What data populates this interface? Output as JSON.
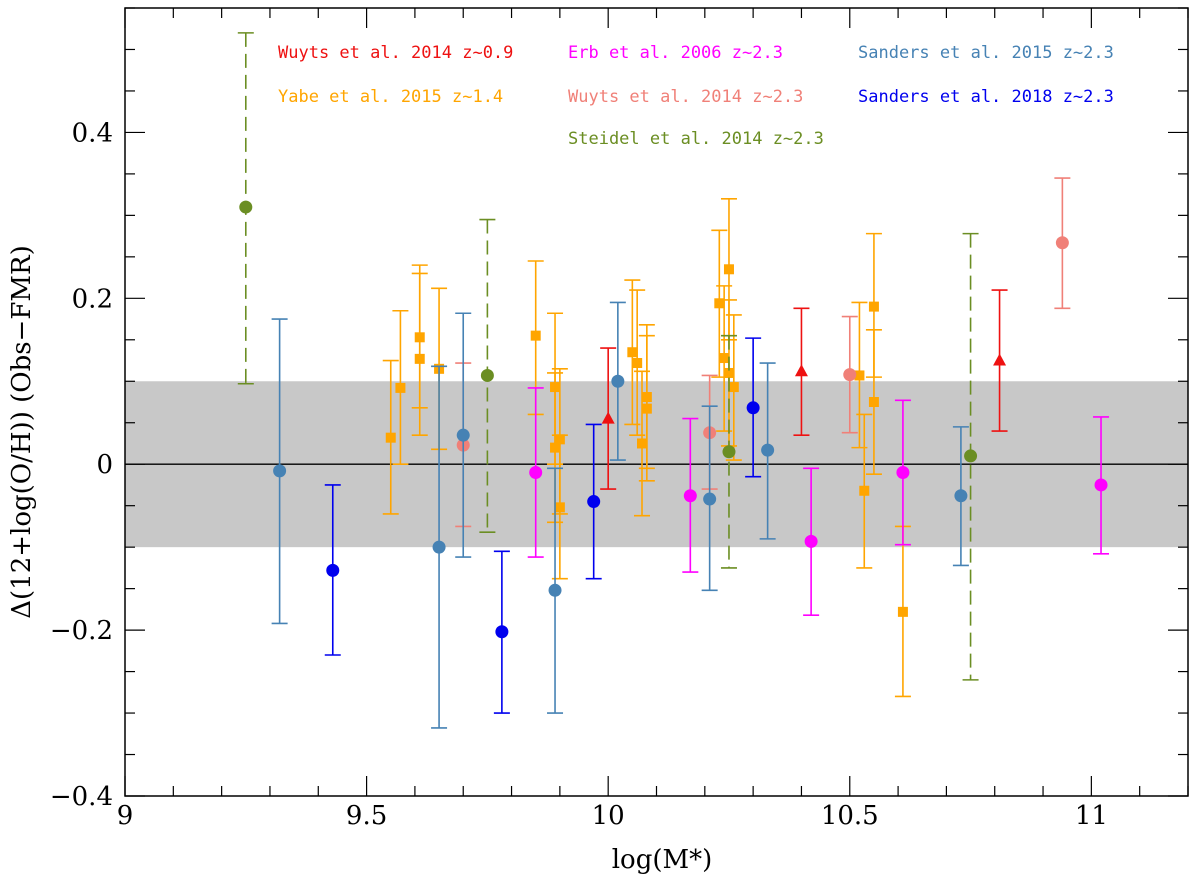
{
  "chart_data": {
    "type": "scatter",
    "xlabel": "log(M*)",
    "ylabel": "Δ(12+log(O/H)) (Obs−FMR)",
    "xlim": [
      9.0,
      11.2
    ],
    "ylim": [
      -0.4,
      0.55
    ],
    "x_ticks": [
      9,
      9.5,
      10,
      10.5,
      11
    ],
    "x_tick_labels": [
      "9",
      "9.5",
      "10",
      "10.5",
      "11"
    ],
    "y_ticks": [
      -0.4,
      -0.2,
      0,
      0.2,
      0.4
    ],
    "y_tick_labels": [
      "−0.4",
      "−0.2",
      "0",
      "0.2",
      "0.4"
    ],
    "shaded_band": [
      -0.1,
      0.1
    ],
    "shaded_color": "#c8c8c8",
    "reference_line_y": 0,
    "legend_placement": "top",
    "series": [
      {
        "name": "Wuyts et al. 2014 z~0.9",
        "color": "#ee1111",
        "marker": "triangle",
        "dashed": false,
        "points": [
          {
            "x": 10.0,
            "y": 0.055,
            "lo": -0.03,
            "hi": 0.14
          },
          {
            "x": 10.4,
            "y": 0.112,
            "lo": 0.035,
            "hi": 0.188
          },
          {
            "x": 10.81,
            "y": 0.125,
            "lo": 0.04,
            "hi": 0.21
          }
        ]
      },
      {
        "name": "Yabe et al. 2015 z~1.4",
        "color": "#ffa500",
        "marker": "square",
        "dashed": false,
        "points": [
          {
            "x": 9.55,
            "y": 0.032,
            "lo": -0.06,
            "hi": 0.125
          },
          {
            "x": 9.57,
            "y": 0.092,
            "lo": 0.0,
            "hi": 0.185
          },
          {
            "x": 9.61,
            "y": 0.153,
            "lo": 0.068,
            "hi": 0.24
          },
          {
            "x": 9.61,
            "y": 0.127,
            "lo": 0.035,
            "hi": 0.23
          },
          {
            "x": 9.65,
            "y": 0.115,
            "lo": 0.018,
            "hi": 0.212
          },
          {
            "x": 9.85,
            "y": 0.155,
            "lo": 0.06,
            "hi": 0.245
          },
          {
            "x": 9.89,
            "y": 0.093,
            "lo": 0.0,
            "hi": 0.182
          },
          {
            "x": 9.89,
            "y": 0.02,
            "lo": -0.07,
            "hi": 0.11
          },
          {
            "x": 9.9,
            "y": 0.03,
            "lo": -0.06,
            "hi": 0.115
          },
          {
            "x": 9.9,
            "y": -0.052,
            "lo": -0.138,
            "hi": 0.035
          },
          {
            "x": 10.05,
            "y": 0.135,
            "lo": 0.048,
            "hi": 0.222
          },
          {
            "x": 10.06,
            "y": 0.122,
            "lo": 0.035,
            "hi": 0.21
          },
          {
            "x": 10.07,
            "y": 0.025,
            "lo": -0.062,
            "hi": 0.112
          },
          {
            "x": 10.08,
            "y": 0.081,
            "lo": -0.005,
            "hi": 0.168
          },
          {
            "x": 10.08,
            "y": 0.067,
            "lo": -0.02,
            "hi": 0.155
          },
          {
            "x": 10.23,
            "y": 0.194,
            "lo": 0.105,
            "hi": 0.282
          },
          {
            "x": 10.24,
            "y": 0.128,
            "lo": 0.04,
            "hi": 0.215
          },
          {
            "x": 10.25,
            "y": 0.235,
            "lo": 0.15,
            "hi": 0.32
          },
          {
            "x": 10.25,
            "y": 0.11,
            "lo": 0.022,
            "hi": 0.198
          },
          {
            "x": 10.26,
            "y": 0.093,
            "lo": 0.005,
            "hi": 0.18
          },
          {
            "x": 10.52,
            "y": 0.107,
            "lo": 0.02,
            "hi": 0.195
          },
          {
            "x": 10.53,
            "y": -0.032,
            "lo": -0.125,
            "hi": 0.06
          },
          {
            "x": 10.55,
            "y": 0.19,
            "lo": 0.105,
            "hi": 0.278
          },
          {
            "x": 10.55,
            "y": 0.075,
            "lo": -0.012,
            "hi": 0.162
          },
          {
            "x": 10.61,
            "y": -0.178,
            "lo": -0.28,
            "hi": -0.075
          }
        ]
      },
      {
        "name": "Erb et al. 2006 z~2.3",
        "color": "#ff00ff",
        "marker": "circle",
        "dashed": false,
        "points": [
          {
            "x": 9.85,
            "y": -0.01,
            "lo": -0.112,
            "hi": 0.092
          },
          {
            "x": 10.17,
            "y": -0.038,
            "lo": -0.13,
            "hi": 0.055
          },
          {
            "x": 10.42,
            "y": -0.093,
            "lo": -0.182,
            "hi": -0.005
          },
          {
            "x": 10.61,
            "y": -0.01,
            "lo": -0.097,
            "hi": 0.077
          },
          {
            "x": 11.02,
            "y": -0.025,
            "lo": -0.108,
            "hi": 0.057
          }
        ]
      },
      {
        "name": "Wuyts et al. 2014 z~2.3",
        "color": "#f08078",
        "marker": "circle",
        "dashed": false,
        "points": [
          {
            "x": 9.7,
            "y": 0.023,
            "lo": -0.075,
            "hi": 0.122
          },
          {
            "x": 10.21,
            "y": 0.038,
            "lo": -0.03,
            "hi": 0.107
          },
          {
            "x": 10.5,
            "y": 0.108,
            "lo": 0.038,
            "hi": 0.178
          },
          {
            "x": 10.94,
            "y": 0.267,
            "lo": 0.188,
            "hi": 0.345
          }
        ]
      },
      {
        "name": "Steidel et al. 2014 z~2.3",
        "color": "#6b8e23",
        "marker": "circle",
        "dashed": true,
        "points": [
          {
            "x": 9.25,
            "y": 0.31,
            "lo": 0.097,
            "hi": 0.52
          },
          {
            "x": 9.75,
            "y": 0.107,
            "lo": -0.082,
            "hi": 0.295
          },
          {
            "x": 10.25,
            "y": 0.015,
            "lo": -0.125,
            "hi": 0.155
          },
          {
            "x": 10.75,
            "y": 0.01,
            "lo": -0.26,
            "hi": 0.278
          }
        ]
      },
      {
        "name": "Sanders et al. 2015 z~2.3",
        "color": "#4682b4",
        "marker": "circle",
        "dashed": false,
        "points": [
          {
            "x": 9.32,
            "y": -0.008,
            "lo": -0.192,
            "hi": 0.175
          },
          {
            "x": 9.65,
            "y": -0.1,
            "lo": -0.318,
            "hi": 0.118
          },
          {
            "x": 9.7,
            "y": 0.035,
            "lo": -0.112,
            "hi": 0.182
          },
          {
            "x": 9.89,
            "y": -0.152,
            "lo": -0.3,
            "hi": -0.005
          },
          {
            "x": 10.02,
            "y": 0.1,
            "lo": 0.005,
            "hi": 0.195
          },
          {
            "x": 10.21,
            "y": -0.042,
            "lo": -0.152,
            "hi": 0.07
          },
          {
            "x": 10.33,
            "y": 0.017,
            "lo": -0.09,
            "hi": 0.122
          },
          {
            "x": 10.73,
            "y": -0.038,
            "lo": -0.122,
            "hi": 0.045
          }
        ]
      },
      {
        "name": "Sanders et al. 2018 z~2.3",
        "color": "#0000ee",
        "marker": "circle",
        "dashed": false,
        "points": [
          {
            "x": 9.43,
            "y": -0.128,
            "lo": -0.23,
            "hi": -0.025
          },
          {
            "x": 9.78,
            "y": -0.202,
            "lo": -0.3,
            "hi": -0.105
          },
          {
            "x": 9.97,
            "y": -0.045,
            "lo": -0.138,
            "hi": 0.048
          },
          {
            "x": 10.3,
            "y": 0.068,
            "lo": -0.015,
            "hi": 0.152
          }
        ]
      }
    ]
  }
}
